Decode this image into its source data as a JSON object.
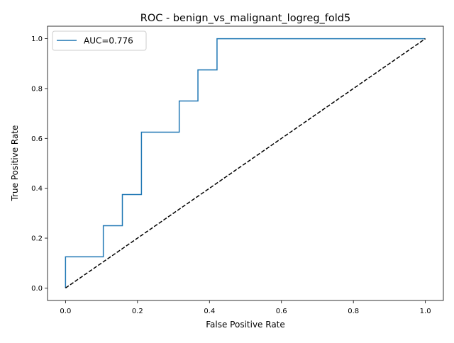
{
  "chart_data": {
    "type": "line",
    "title": "ROC - benign_vs_malignant_logreg_fold5",
    "xlabel": "False Positive Rate",
    "ylabel": "True Positive Rate",
    "xlim": [
      -0.05,
      1.05
    ],
    "ylim": [
      -0.05,
      1.05
    ],
    "xticks": [
      0.0,
      0.2,
      0.4,
      0.6,
      0.8,
      1.0
    ],
    "yticks": [
      0.0,
      0.2,
      0.4,
      0.6,
      0.8,
      1.0
    ],
    "xtick_labels": [
      "0.0",
      "0.2",
      "0.4",
      "0.6",
      "0.8",
      "1.0"
    ],
    "ytick_labels": [
      "0.0",
      "0.2",
      "0.4",
      "0.6",
      "0.8",
      "1.0"
    ],
    "grid": false,
    "legend_position": "top-left",
    "series": [
      {
        "name": "AUC=0.776",
        "color": "#1f77b4",
        "style": "solid",
        "x": [
          0.0,
          0.0,
          0.105,
          0.105,
          0.158,
          0.158,
          0.211,
          0.211,
          0.316,
          0.316,
          0.368,
          0.368,
          0.421,
          0.421,
          1.0
        ],
        "y": [
          0.0,
          0.125,
          0.125,
          0.25,
          0.25,
          0.375,
          0.375,
          0.625,
          0.625,
          0.75,
          0.75,
          0.875,
          0.875,
          1.0,
          1.0
        ]
      },
      {
        "name": "",
        "color": "#000000",
        "style": "dashed",
        "x": [
          0.0,
          1.0
        ],
        "y": [
          0.0,
          1.0
        ]
      }
    ]
  }
}
